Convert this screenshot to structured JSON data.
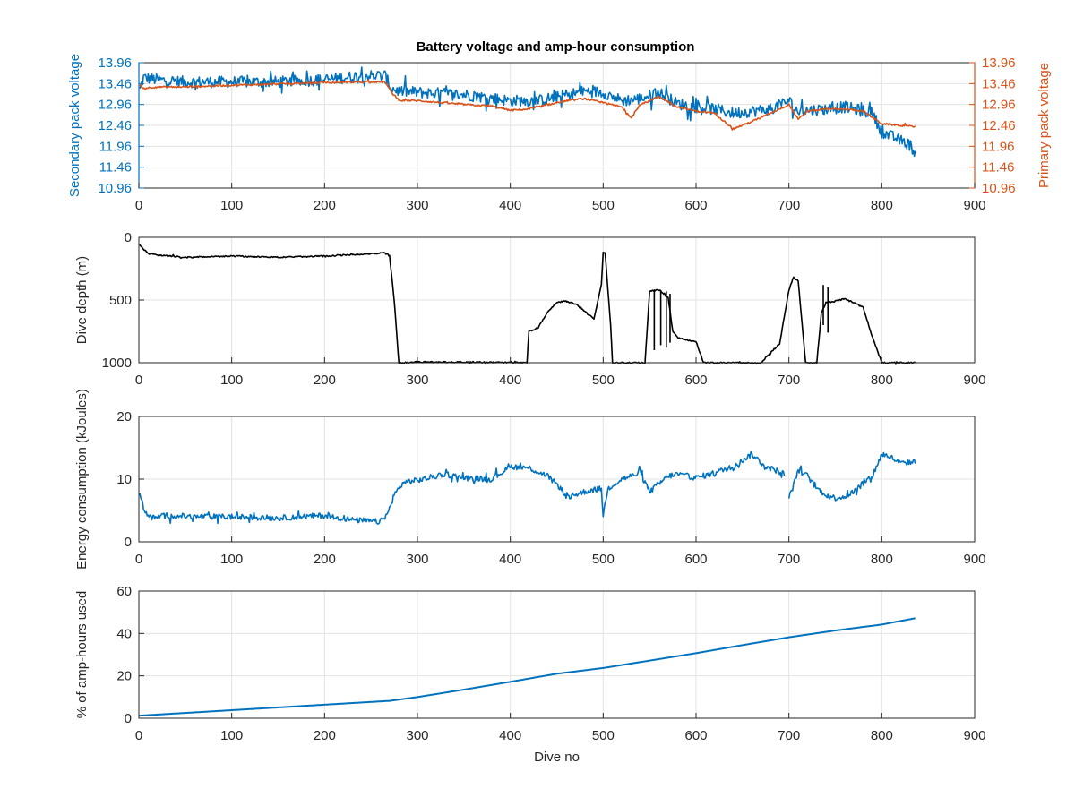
{
  "figure": {
    "title": "Battery voltage and amp-hour consumption",
    "colors": {
      "blue": "#0072bd",
      "orange": "#d95319",
      "black": "#000000",
      "grid": "#e3e3e3",
      "axis": "#262626"
    }
  },
  "chart_data": [
    {
      "id": "voltage",
      "type": "line",
      "title": "Battery voltage and amp-hour consumption",
      "xlabel": "",
      "xlim": [
        0,
        900
      ],
      "xticks": [
        "0",
        "100",
        "200",
        "300",
        "400",
        "500",
        "600",
        "700",
        "800",
        "900"
      ],
      "grid": true,
      "y_left": {
        "label": "Secondary pack voltage",
        "color": "#0072bd",
        "ylim": [
          10.96,
          13.96
        ],
        "ticks": [
          "10.96",
          "11.46",
          "11.96",
          "12.46",
          "12.96",
          "13.46",
          "13.96"
        ]
      },
      "y_right": {
        "label": "Primary pack voltage",
        "color": "#d95319",
        "ylim": [
          10.96,
          13.96
        ],
        "ticks": [
          "10.96",
          "11.46",
          "11.96",
          "12.46",
          "12.96",
          "13.46",
          "13.96"
        ]
      },
      "series": [
        {
          "axis": "left",
          "color": "#0072bd",
          "noise": 0.14,
          "x": [
            1,
            5,
            20,
            50,
            100,
            150,
            200,
            240,
            265,
            272,
            280,
            300,
            350,
            400,
            430,
            460,
            480,
            500,
            520,
            540,
            560,
            580,
            600,
            620,
            640,
            660,
            680,
            700,
            710,
            720,
            740,
            760,
            780,
            790,
            800,
            810,
            820,
            830,
            836
          ],
          "y": [
            13.3,
            13.6,
            13.55,
            13.5,
            13.5,
            13.5,
            13.55,
            13.65,
            13.65,
            13.35,
            13.28,
            13.25,
            13.2,
            13.05,
            13.05,
            13.18,
            13.28,
            13.25,
            13.05,
            13.1,
            13.25,
            12.98,
            12.9,
            12.85,
            12.75,
            12.8,
            12.85,
            13.05,
            12.78,
            12.82,
            12.85,
            12.9,
            12.8,
            12.75,
            12.3,
            12.2,
            12.1,
            12.0,
            11.8
          ]
        },
        {
          "axis": "right",
          "color": "#d95319",
          "noise": 0.02,
          "x": [
            1,
            5,
            20,
            50,
            100,
            150,
            200,
            240,
            265,
            272,
            280,
            300,
            350,
            380,
            400,
            420,
            440,
            460,
            480,
            500,
            520,
            530,
            540,
            560,
            580,
            600,
            620,
            640,
            660,
            680,
            700,
            710,
            720,
            740,
            760,
            780,
            800,
            830,
            836
          ],
          "y": [
            13.4,
            13.35,
            13.38,
            13.38,
            13.42,
            13.45,
            13.48,
            13.5,
            13.5,
            13.25,
            13.06,
            13.05,
            12.96,
            12.92,
            12.82,
            12.85,
            12.95,
            13.05,
            13.1,
            13.0,
            12.9,
            12.65,
            12.95,
            13.15,
            12.9,
            12.8,
            12.75,
            12.38,
            12.55,
            12.75,
            12.96,
            12.6,
            12.8,
            12.85,
            12.85,
            12.8,
            12.5,
            12.44,
            12.44
          ]
        }
      ]
    },
    {
      "id": "depth",
      "type": "line",
      "xlim": [
        0,
        900
      ],
      "xticks": [
        "0",
        "100",
        "200",
        "300",
        "400",
        "500",
        "600",
        "700",
        "800",
        "900"
      ],
      "ylabel": "Dive depth (m)",
      "ylim": [
        0,
        1000
      ],
      "y_reversed": true,
      "yticks": [
        "0",
        "500",
        "1000"
      ],
      "grid": true,
      "series": [
        {
          "color": "#000000",
          "noise": 5,
          "x": [
            1,
            10,
            25,
            50,
            100,
            150,
            200,
            240,
            265,
            270,
            275,
            280,
            300,
            350,
            400,
            418,
            420,
            430,
            440,
            450,
            460,
            470,
            480,
            490,
            498,
            500,
            502,
            508,
            510,
            530,
            545,
            550,
            560,
            570,
            575,
            580,
            590,
            600,
            608,
            610,
            650,
            670,
            680,
            690,
            700,
            705,
            710,
            718,
            720,
            730,
            735,
            740,
            750,
            760,
            770,
            780,
            790,
            800,
            836
          ],
          "y": [
            60,
            130,
            145,
            160,
            150,
            160,
            150,
            135,
            125,
            150,
            500,
            1000,
            995,
            995,
            998,
            998,
            750,
            720,
            600,
            520,
            510,
            530,
            590,
            650,
            380,
            120,
            120,
            700,
            1000,
            1000,
            1000,
            430,
            420,
            480,
            750,
            800,
            820,
            830,
            1000,
            1000,
            1000,
            1000,
            920,
            850,
            420,
            320,
            350,
            1000,
            1000,
            1000,
            600,
            520,
            510,
            490,
            520,
            560,
            800,
            1000,
            1000
          ]
        }
      ],
      "spikes": [
        {
          "x": 555,
          "y0": 420,
          "y1": 900
        },
        {
          "x": 562,
          "y0": 420,
          "y1": 860
        },
        {
          "x": 568,
          "y0": 430,
          "y1": 880
        },
        {
          "x": 572,
          "y0": 450,
          "y1": 840
        },
        {
          "x": 737,
          "y0": 380,
          "y1": 700
        },
        {
          "x": 742,
          "y0": 400,
          "y1": 760
        }
      ]
    },
    {
      "id": "energy",
      "type": "line",
      "xlim": [
        0,
        900
      ],
      "xticks": [
        "0",
        "100",
        "200",
        "300",
        "400",
        "500",
        "600",
        "700",
        "800",
        "900"
      ],
      "ylabel": "Energy consumption (kJoules)",
      "ylim": [
        0,
        20
      ],
      "yticks": [
        "0",
        "10",
        "20"
      ],
      "grid": true,
      "series": [
        {
          "color": "#0072bd",
          "noise": 0.45,
          "x": [
            1,
            3,
            8,
            15,
            30,
            60,
            100,
            150,
            200,
            230,
            260,
            268,
            275,
            285,
            300,
            330,
            350,
            380,
            400,
            420,
            440,
            455,
            460,
            480,
            498,
            500,
            505,
            520,
            540,
            550,
            570,
            580,
            600,
            620,
            640,
            660,
            675,
            690,
            695
          ],
          "y": [
            8,
            6.5,
            4.5,
            3.8,
            4.2,
            4.0,
            4.0,
            3.8,
            4.2,
            3.5,
            3.2,
            4.5,
            7.5,
            9.5,
            9.8,
            10.8,
            10.2,
            10.0,
            12.0,
            11.8,
            10.5,
            8.5,
            7.0,
            8.0,
            8.5,
            4.2,
            8.5,
            10.0,
            11.0,
            8.0,
            10.5,
            10.8,
            10.2,
            11.0,
            12.0,
            14.0,
            12.0,
            11.2,
            10.8
          ]
        },
        {
          "color": "#0072bd",
          "noise": 0.45,
          "x": [
            700,
            705,
            710,
            720,
            730,
            740,
            750,
            760,
            770,
            780,
            790,
            800,
            810,
            820,
            836
          ],
          "y": [
            7.0,
            9.0,
            11.5,
            10.5,
            8.5,
            7.5,
            7.0,
            7.2,
            8.0,
            9.5,
            10.5,
            14.0,
            13.5,
            12.5,
            12.8
          ]
        }
      ]
    },
    {
      "id": "amphours",
      "type": "line",
      "xlim": [
        0,
        900
      ],
      "xticks": [
        "0",
        "100",
        "200",
        "300",
        "400",
        "500",
        "600",
        "700",
        "800",
        "900"
      ],
      "xlabel": "Dive no",
      "ylabel": "% of amp-hours used",
      "ylim": [
        0,
        60
      ],
      "yticks": [
        "0",
        "20",
        "40",
        "60"
      ],
      "grid": true,
      "series": [
        {
          "color": "#0072bd",
          "noise": 0,
          "x": [
            0,
            100,
            200,
            270,
            300,
            350,
            400,
            450,
            500,
            550,
            600,
            650,
            700,
            750,
            800,
            836
          ],
          "y": [
            1.2,
            3.8,
            6.4,
            8.2,
            10.0,
            13.5,
            17.2,
            21.0,
            23.7,
            27.2,
            30.7,
            34.5,
            38.2,
            41.4,
            44.2,
            47.2
          ]
        }
      ]
    }
  ]
}
